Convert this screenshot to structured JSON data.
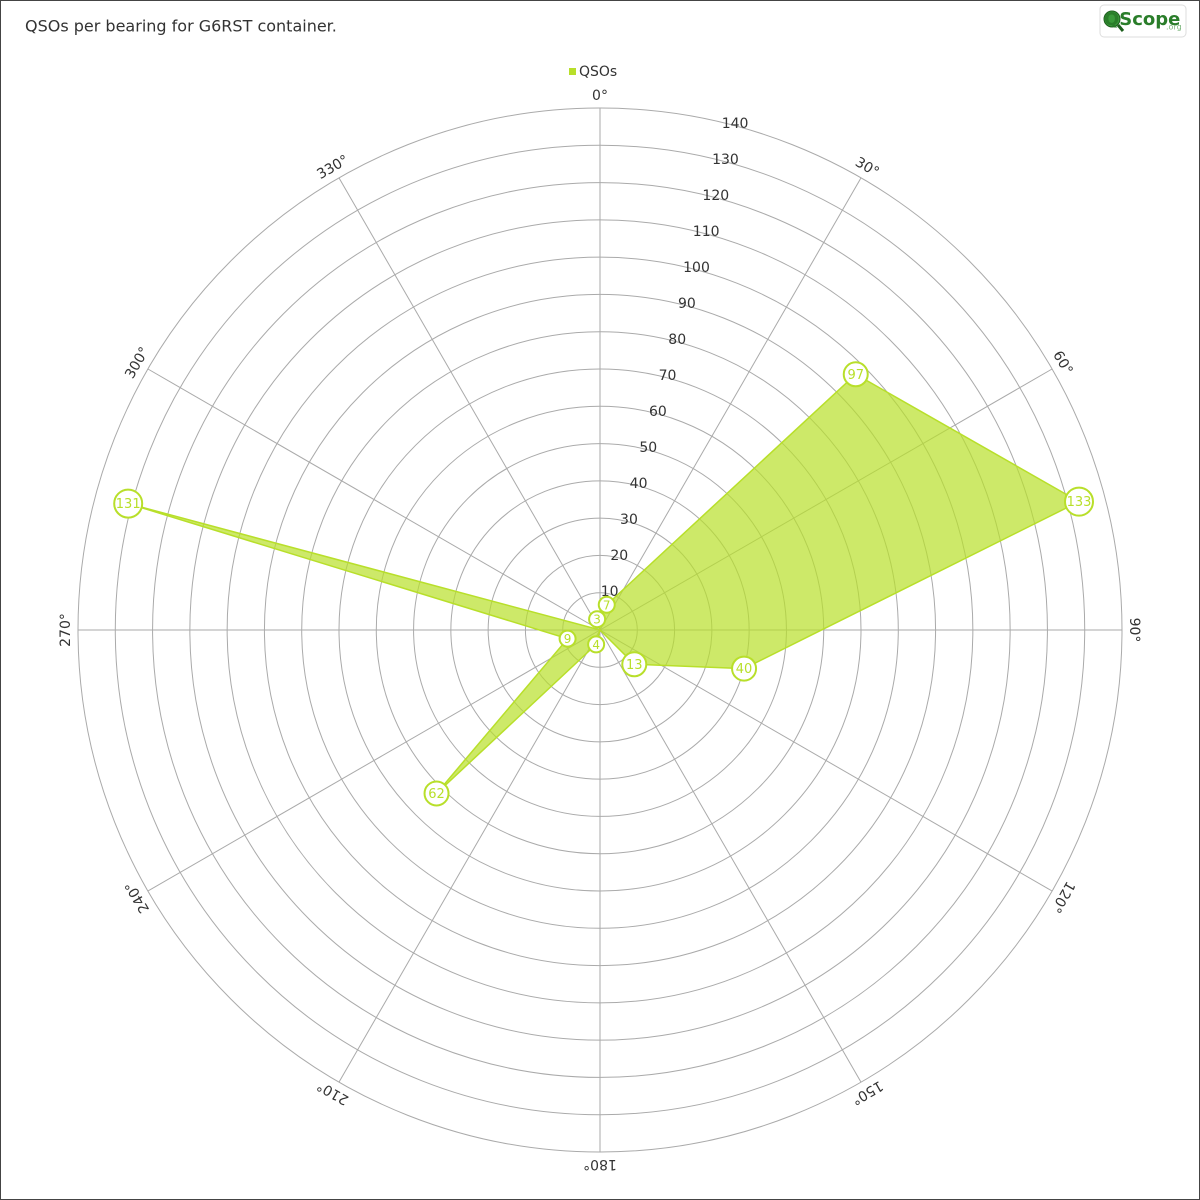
{
  "chart_data": {
    "type": "polar_area",
    "title": "QSOs per bearing for G6RST container.",
    "logo": {
      "text": "QScope",
      "suffix": ".org"
    },
    "x": [
      15,
      45,
      75,
      105,
      135,
      165,
      195,
      225,
      255,
      285,
      315,
      345
    ],
    "series": [
      {
        "name": "QSOs",
        "color": "#b8df2a",
        "values": [
          7,
          97,
          133,
          40,
          13,
          0,
          4,
          62,
          9,
          131,
          0,
          3
        ]
      }
    ],
    "rlim": [
      0,
      140
    ],
    "rticks": [
      10,
      20,
      30,
      40,
      50,
      60,
      70,
      80,
      90,
      100,
      110,
      120,
      130,
      140
    ],
    "xticks": [
      {
        "value": 0,
        "label": "0°"
      },
      {
        "value": 30,
        "label": "30°"
      },
      {
        "value": 60,
        "label": "60°"
      },
      {
        "value": 90,
        "label": "90°"
      },
      {
        "value": 120,
        "label": "120°"
      },
      {
        "value": 150,
        "label": "150°"
      },
      {
        "value": 180,
        "label": "180°"
      },
      {
        "value": 210,
        "label": "210°"
      },
      {
        "value": 240,
        "label": "240°"
      },
      {
        "value": 270,
        "label": "270°"
      },
      {
        "value": 300,
        "label": "300°"
      },
      {
        "value": 330,
        "label": "330°"
      }
    ],
    "legend": "top"
  }
}
